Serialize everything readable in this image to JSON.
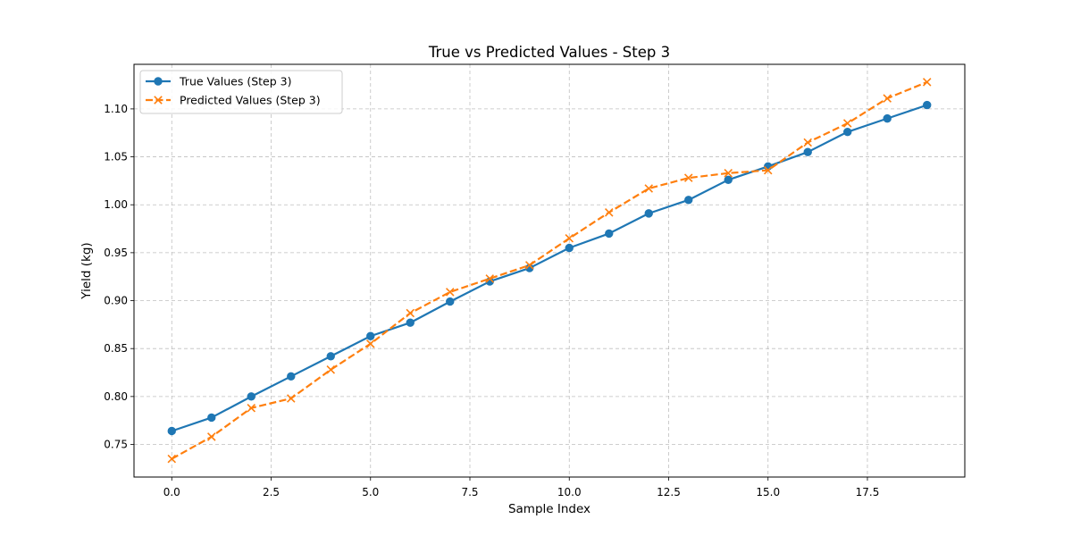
{
  "chart_data": {
    "type": "line",
    "title": "True vs Predicted Values - Step 3",
    "xlabel": "Sample Index",
    "ylabel": "Yield (kg)",
    "xlim": [
      -0.95,
      19.95
    ],
    "ylim": [
      0.716,
      1.1465
    ],
    "xticks": [
      0.0,
      2.5,
      5.0,
      7.5,
      10.0,
      12.5,
      15.0,
      17.5
    ],
    "xtick_labels": [
      "0.0",
      "2.5",
      "5.0",
      "7.5",
      "10.0",
      "12.5",
      "15.0",
      "17.5"
    ],
    "yticks": [
      0.75,
      0.8,
      0.85,
      0.9,
      0.95,
      1.0,
      1.05,
      1.1
    ],
    "ytick_labels": [
      "0.75",
      "0.80",
      "0.85",
      "0.90",
      "0.95",
      "1.00",
      "1.05",
      "1.10"
    ],
    "grid": true,
    "legend_position": "top-left",
    "x": [
      0,
      1,
      2,
      3,
      4,
      5,
      6,
      7,
      8,
      9,
      10,
      11,
      12,
      13,
      14,
      15,
      16,
      17,
      18,
      19
    ],
    "series": [
      {
        "name": "True Values (Step 3)",
        "color": "#1f77b4",
        "marker": "circle",
        "line_style": "solid",
        "values": [
          0.764,
          0.778,
          0.8,
          0.821,
          0.842,
          0.863,
          0.877,
          0.899,
          0.92,
          0.934,
          0.955,
          0.97,
          0.991,
          1.005,
          1.026,
          1.04,
          1.055,
          1.076,
          1.09,
          1.104
        ]
      },
      {
        "name": "Predicted Values (Step 3)",
        "color": "#ff7f0e",
        "marker": "x",
        "line_style": "dashed",
        "values": [
          0.735,
          0.758,
          0.788,
          0.798,
          0.828,
          0.855,
          0.887,
          0.909,
          0.923,
          0.937,
          0.965,
          0.992,
          1.017,
          1.028,
          1.033,
          1.036,
          1.065,
          1.085,
          1.111,
          1.128
        ]
      }
    ]
  }
}
